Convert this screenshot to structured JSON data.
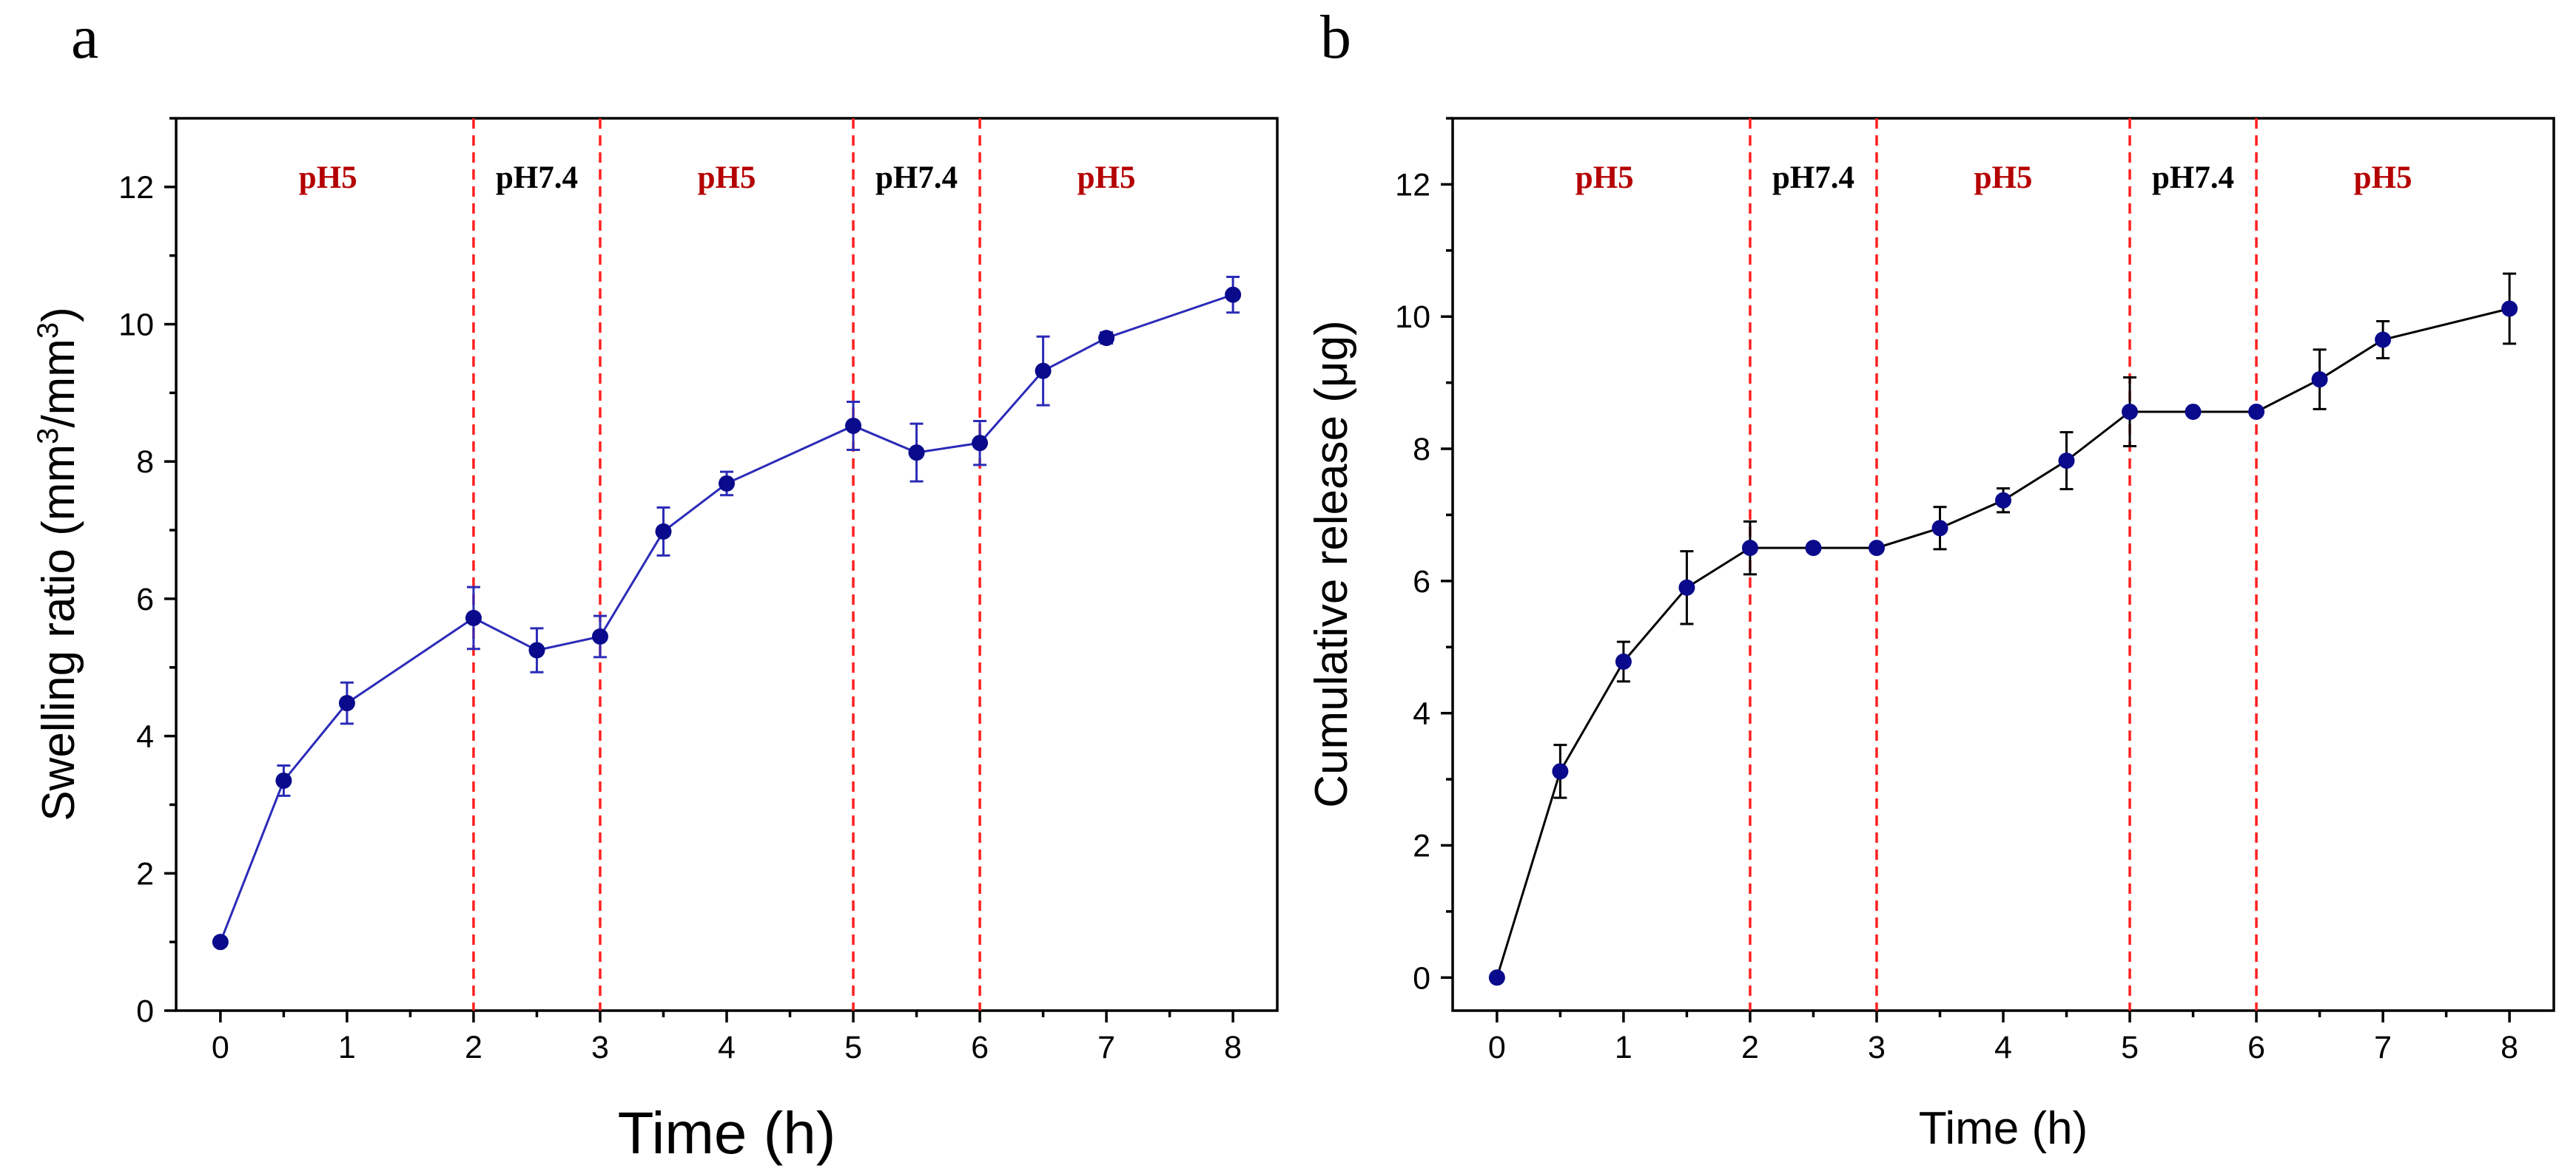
{
  "chart_data": [
    {
      "panel_label": "a",
      "type": "line",
      "x": [
        0,
        0.5,
        1,
        2,
        2.5,
        3,
        3.5,
        4,
        5,
        5.5,
        6,
        6.5,
        7,
        8
      ],
      "values": [
        1.0,
        3.35,
        4.48,
        5.72,
        5.25,
        5.45,
        6.98,
        7.68,
        8.52,
        8.13,
        8.27,
        9.32,
        9.8,
        10.43
      ],
      "errors": [
        0,
        0.22,
        0.3,
        0.45,
        0.32,
        0.3,
        0.35,
        0.17,
        0.35,
        0.42,
        0.32,
        0.5,
        0.08,
        0.26
      ],
      "xlabel": "Time (h)",
      "ylabel": "Swelling ratio (mm3/mm3)",
      "ylabel_parts": {
        "prefix": "Swelling ratio (mm",
        "sup1": "3",
        "middle": "/mm",
        "sup2": "3",
        "suffix": ")"
      },
      "xlim": [
        -0.35,
        8.35
      ],
      "ylim": [
        0,
        13
      ],
      "xticks": [
        0,
        1,
        2,
        3,
        4,
        5,
        6,
        7,
        8
      ],
      "yticks": [
        0,
        2,
        4,
        6,
        8,
        10,
        12
      ],
      "grid": false,
      "line_color": "#2b2bb8",
      "marker_color": "#0a0a8c",
      "divider_color": "#ff2020",
      "dividers": [
        2,
        3,
        5,
        6
      ],
      "regions": [
        {
          "label": "pH5",
          "x": 0.85,
          "color": "#b40000"
        },
        {
          "label": "pH7.4",
          "x": 2.5,
          "color": "#000000"
        },
        {
          "label": "pH5",
          "x": 4.0,
          "color": "#b40000"
        },
        {
          "label": "pH7.4",
          "x": 5.5,
          "color": "#000000"
        },
        {
          "label": "pH5",
          "x": 7.0,
          "color": "#b40000"
        }
      ]
    },
    {
      "panel_label": "b",
      "type": "line",
      "x": [
        0,
        0.5,
        1,
        1.5,
        2,
        2.5,
        3,
        3.5,
        4,
        4.5,
        5,
        5.5,
        6,
        6.5,
        7,
        8
      ],
      "values": [
        0,
        3.12,
        4.78,
        5.9,
        6.5,
        6.5,
        6.5,
        6.8,
        7.22,
        7.82,
        8.56,
        8.56,
        8.56,
        9.05,
        9.65,
        10.12
      ],
      "errors": [
        0,
        0.4,
        0.3,
        0.55,
        0.4,
        0,
        0,
        0.32,
        0.18,
        0.43,
        0.52,
        0,
        0,
        0.45,
        0.28,
        0.53
      ],
      "xlabel": "Time (h)",
      "ylabel": "Cumulative release (μg)",
      "xlim": [
        -0.35,
        8.35
      ],
      "ylim": [
        -0.5,
        13
      ],
      "xticks": [
        0,
        1,
        2,
        3,
        4,
        5,
        6,
        7,
        8
      ],
      "yticks": [
        0,
        2,
        4,
        6,
        8,
        10,
        12
      ],
      "grid": false,
      "line_color": "#000000",
      "marker_color": "#0a0a8c",
      "divider_color": "#ff2020",
      "dividers": [
        2,
        3,
        5,
        6
      ],
      "regions": [
        {
          "label": "pH5",
          "x": 0.85,
          "color": "#b40000"
        },
        {
          "label": "pH7.4",
          "x": 2.5,
          "color": "#000000"
        },
        {
          "label": "pH5",
          "x": 4.0,
          "color": "#b40000"
        },
        {
          "label": "pH7.4",
          "x": 5.5,
          "color": "#000000"
        },
        {
          "label": "pH5",
          "x": 7.0,
          "color": "#b40000"
        }
      ]
    }
  ]
}
